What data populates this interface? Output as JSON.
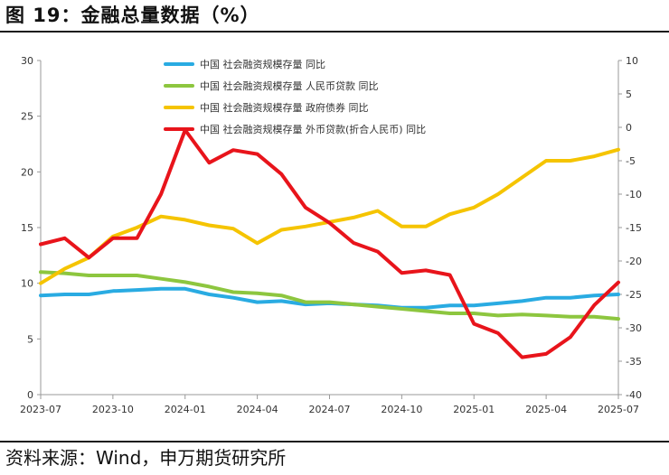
{
  "title": "图 19：金融总量数据（%）",
  "source": "资料来源：Wind，申万期货研究所",
  "chart_data": {
    "type": "line",
    "x": [
      "2023-07",
      "2023-08",
      "2023-09",
      "2023-10",
      "2023-11",
      "2023-12",
      "2024-01",
      "2024-02",
      "2024-03",
      "2024-04",
      "2024-05",
      "2024-06",
      "2024-07",
      "2024-08",
      "2024-09",
      "2024-10",
      "2024-11",
      "2024-12",
      "2025-01",
      "2025-02",
      "2025-03",
      "2025-04",
      "2025-05",
      "2025-06",
      "2025-07"
    ],
    "x_tick_labels": [
      "2023-07",
      "2023-10",
      "2024-01",
      "2024-04",
      "2024-07",
      "2024-10",
      "2025-01",
      "2025-04",
      "2025-07"
    ],
    "left_axis": {
      "ylim": [
        0,
        30
      ],
      "ticks": [
        0,
        5,
        10,
        15,
        20,
        25,
        30
      ]
    },
    "right_axis": {
      "ylim": [
        -40,
        10
      ],
      "ticks": [
        -40,
        -35,
        -30,
        -25,
        -20,
        -15,
        -10,
        -5,
        0,
        5,
        10
      ]
    },
    "legend_position": "top",
    "series": [
      {
        "name": "中国 社会融资规模存量 同比",
        "axis": "left",
        "color": "#29abe2",
        "values": [
          8.9,
          9.0,
          9.0,
          9.3,
          9.4,
          9.5,
          9.5,
          9.0,
          8.7,
          8.3,
          8.4,
          8.1,
          8.2,
          8.1,
          8.0,
          7.8,
          7.8,
          8.0,
          8.0,
          8.2,
          8.4,
          8.7,
          8.7,
          8.9,
          9.0
        ]
      },
      {
        "name": "中国 社会融资规模存量 人民币贷款 同比",
        "axis": "left",
        "color": "#8dc63f",
        "values": [
          11.0,
          10.9,
          10.7,
          10.7,
          10.7,
          10.4,
          10.1,
          9.7,
          9.2,
          9.1,
          8.9,
          8.3,
          8.3,
          8.1,
          7.9,
          7.7,
          7.5,
          7.3,
          7.3,
          7.1,
          7.2,
          7.1,
          7.0,
          7.0,
          6.8
        ]
      },
      {
        "name": "中国 社会融资规模存量 政府债券 同比",
        "axis": "left",
        "color": "#f5c400",
        "values": [
          10.0,
          11.3,
          12.3,
          14.2,
          15.0,
          16.0,
          15.7,
          15.2,
          14.9,
          13.6,
          14.8,
          15.1,
          15.5,
          15.9,
          16.5,
          15.1,
          15.1,
          16.2,
          16.8,
          18.0,
          19.5,
          21.0,
          21.0,
          21.4,
          22.0
        ]
      },
      {
        "name": "中国 社会融资规模存量 外币贷款(折合人民币) 同比",
        "axis": "right",
        "color": "#e8141b",
        "values": [
          -17.5,
          -16.6,
          -19.5,
          -16.6,
          -16.6,
          -10.0,
          -0.4,
          -5.3,
          -3.4,
          -4.0,
          -7.0,
          -12.0,
          -14.3,
          -17.3,
          -18.6,
          -21.8,
          -21.4,
          -22.1,
          -29.4,
          -30.8,
          -34.4,
          -33.9,
          -31.4,
          -26.6,
          -23.2
        ]
      }
    ]
  }
}
